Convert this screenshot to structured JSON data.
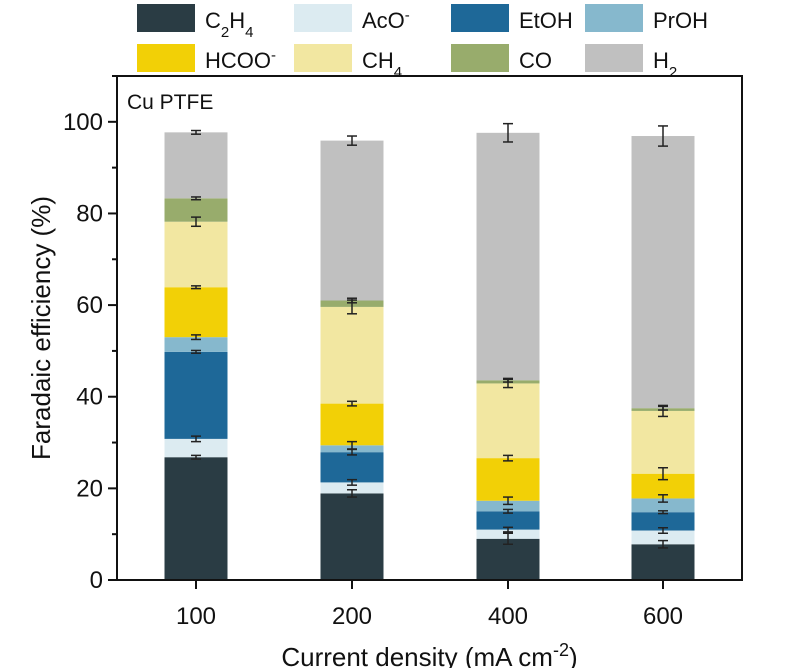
{
  "chart_data": {
    "type": "bar",
    "stacked": true,
    "panel_label": "Cu PTFE",
    "xlabel": "Current density (mA cm-2)",
    "ylabel": "Faradaic efficiency (%)",
    "categories": [
      "100",
      "200",
      "400",
      "600"
    ],
    "ylim": [
      0,
      110
    ],
    "yticks": [
      0,
      20,
      40,
      60,
      80,
      100
    ],
    "grid": false,
    "legend_position": "top",
    "series": [
      {
        "name": "C2H4",
        "color": "#2a3c44",
        "values": [
          26.8,
          18.9,
          9.0,
          7.8
        ],
        "errors": [
          0.4,
          0.8,
          1.2,
          0.8
        ]
      },
      {
        "name": "AcO-",
        "color": "#dcebf1",
        "values": [
          4.0,
          2.4,
          2.0,
          3.0
        ],
        "errors": [
          0.6,
          0.6,
          0.5,
          0.6
        ]
      },
      {
        "name": "EtOH",
        "color": "#1e6898",
        "values": [
          19.0,
          6.6,
          4.0,
          4.0
        ],
        "errors": [
          0.3,
          0.6,
          0.4,
          0.3
        ]
      },
      {
        "name": "PrOH",
        "color": "#86b8cd",
        "values": [
          3.2,
          1.5,
          2.3,
          3.0
        ],
        "errors": [
          0.5,
          0.8,
          0.8,
          0.8
        ]
      },
      {
        "name": "HCOO-",
        "color": "#f2d006",
        "values": [
          10.9,
          9.1,
          9.3,
          5.4
        ],
        "errors": [
          0.3,
          0.5,
          0.6,
          1.3
        ]
      },
      {
        "name": "CH4",
        "color": "#f2e7a1",
        "values": [
          14.3,
          21.1,
          16.3,
          13.7
        ],
        "errors": [
          1.0,
          1.5,
          0.9,
          1.2
        ]
      },
      {
        "name": "CO",
        "color": "#98ac6c",
        "values": [
          5.1,
          1.4,
          0.7,
          0.6
        ],
        "errors": [
          0.3,
          0.5,
          0.4,
          0.4
        ]
      },
      {
        "name": "H2",
        "color": "#c0c0c0",
        "values": [
          14.4,
          34.9,
          54.0,
          59.4
        ],
        "errors": [
          0.4,
          1.0,
          2.0,
          2.2
        ]
      }
    ]
  }
}
